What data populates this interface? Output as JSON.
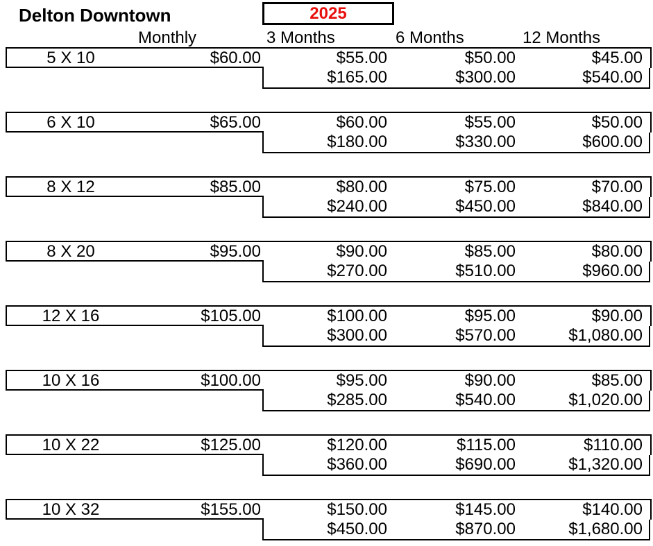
{
  "title": "Delton Downtown",
  "year": "2025",
  "year_color": "#e8110e",
  "border_color": "#000000",
  "columns": {
    "monthly": "Monthly",
    "m3": "3 Months",
    "m6": "6 Months",
    "m12": "12 Months"
  },
  "rows": [
    {
      "size": "5 X 10",
      "monthly": "$60.00",
      "rate_3mo": "$55.00",
      "rate_6mo": "$50.00",
      "rate_12mo": "$45.00",
      "total_3mo": "$165.00",
      "total_6mo": "$300.00",
      "total_12mo": "$540.00"
    },
    {
      "size": "6 X 10",
      "monthly": "$65.00",
      "rate_3mo": "$60.00",
      "rate_6mo": "$55.00",
      "rate_12mo": "$50.00",
      "total_3mo": "$180.00",
      "total_6mo": "$330.00",
      "total_12mo": "$600.00"
    },
    {
      "size": "8 X 12",
      "monthly": "$85.00",
      "rate_3mo": "$80.00",
      "rate_6mo": "$75.00",
      "rate_12mo": "$70.00",
      "total_3mo": "$240.00",
      "total_6mo": "$450.00",
      "total_12mo": "$840.00"
    },
    {
      "size": "8 X 20",
      "monthly": "$95.00",
      "rate_3mo": "$90.00",
      "rate_6mo": "$85.00",
      "rate_12mo": "$80.00",
      "total_3mo": "$270.00",
      "total_6mo": "$510.00",
      "total_12mo": "$960.00"
    },
    {
      "size": "12 X 16",
      "monthly": "$105.00",
      "rate_3mo": "$100.00",
      "rate_6mo": "$95.00",
      "rate_12mo": "$90.00",
      "total_3mo": "$300.00",
      "total_6mo": "$570.00",
      "total_12mo": "$1,080.00"
    },
    {
      "size": "10 X 16",
      "monthly": "$100.00",
      "rate_3mo": "$95.00",
      "rate_6mo": "$90.00",
      "rate_12mo": "$85.00",
      "total_3mo": "$285.00",
      "total_6mo": "$540.00",
      "total_12mo": "$1,020.00"
    },
    {
      "size": "10 X 22",
      "monthly": "$125.00",
      "rate_3mo": "$120.00",
      "rate_6mo": "$115.00",
      "rate_12mo": "$110.00",
      "total_3mo": "$360.00",
      "total_6mo": "$690.00",
      "total_12mo": "$1,320.00"
    },
    {
      "size": "10 X 32",
      "monthly": "$155.00",
      "rate_3mo": "$150.00",
      "rate_6mo": "$145.00",
      "rate_12mo": "$140.00",
      "total_3mo": "$450.00",
      "total_6mo": "$870.00",
      "total_12mo": "$1,680.00"
    }
  ]
}
